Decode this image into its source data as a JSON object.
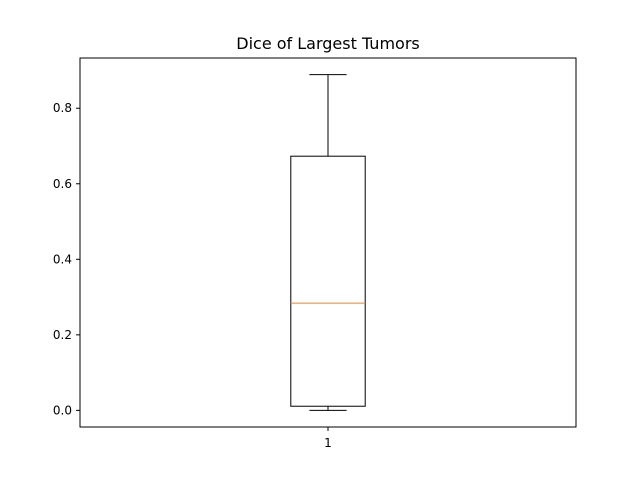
{
  "chart_data": {
    "type": "box",
    "title": "Dice of Largest Tumors",
    "xlabel": "",
    "ylabel": "",
    "categories": [
      "1"
    ],
    "boxes": [
      {
        "category": "1",
        "whisker_low": 0.0,
        "q1": 0.011,
        "median": 0.284,
        "q3": 0.673,
        "whisker_high": 0.889
      }
    ],
    "ylim": [
      -0.044,
      0.933
    ],
    "yticks": [
      0.0,
      0.2,
      0.4,
      0.6,
      0.8
    ],
    "ytick_labels": [
      "0.0",
      "0.2",
      "0.4",
      "0.6",
      "0.8"
    ],
    "grid": false,
    "legend": "none",
    "colors": {
      "box": "#000000",
      "median": "#ff7f0e",
      "axes": "#000000",
      "background": "#ffffff"
    }
  }
}
